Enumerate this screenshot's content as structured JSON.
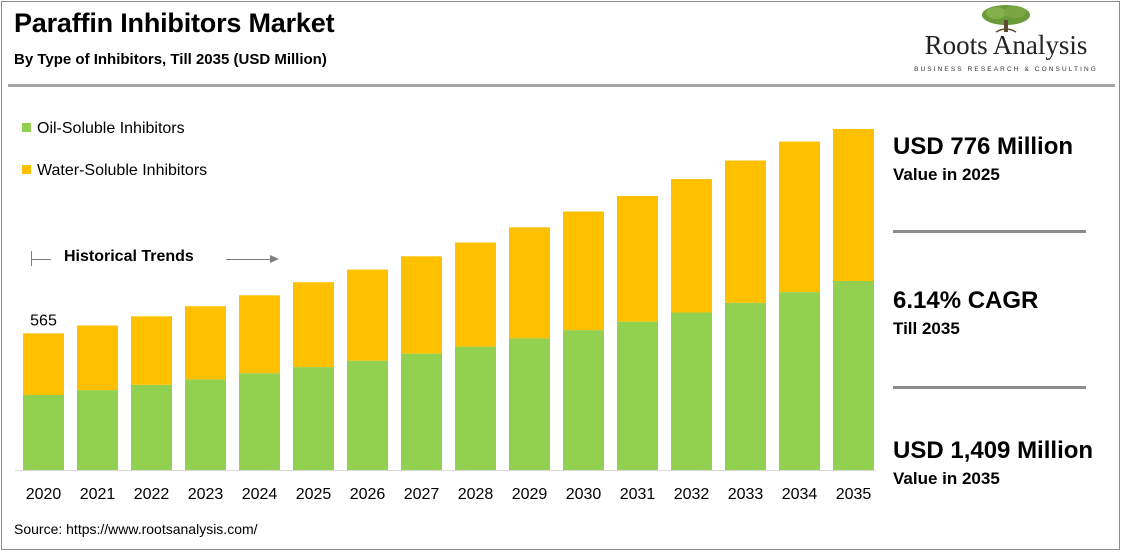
{
  "header": {
    "title": "Paraffin Inhibitors Market",
    "subtitle": "By Type of Inhibitors, Till 2035 (USD Million)"
  },
  "logo": {
    "name": "Roots Analysis",
    "tagline": "BUSINESS RESEARCH & CONSULTING",
    "icon": "tree-icon"
  },
  "legend": {
    "items": [
      {
        "label": "Oil-Soluble Inhibitors",
        "color": "#92d050"
      },
      {
        "label": "Water-Soluble Inhibitors",
        "color": "#ffc000"
      }
    ]
  },
  "annotation": {
    "historical_label": "Historical Trends",
    "first_value_label": "565"
  },
  "chart_data": {
    "type": "bar",
    "stacked": true,
    "categories": [
      "2020",
      "2021",
      "2022",
      "2023",
      "2024",
      "2025",
      "2026",
      "2027",
      "2028",
      "2029",
      "2030",
      "2031",
      "2032",
      "2033",
      "2034",
      "2035"
    ],
    "series": [
      {
        "name": "Oil-Soluble Inhibitors",
        "color": "#92d050",
        "values": [
          310,
          330,
          352,
          375,
          400,
          425,
          452,
          481,
          510,
          544,
          578,
          613,
          651,
          691,
          735,
          781
        ]
      },
      {
        "name": "Water-Soluble Inhibitors",
        "color": "#ffc000",
        "values": [
          255,
          267,
          283,
          302,
          322,
          351,
          376,
          402,
          430,
          459,
          490,
          519,
          551,
          588,
          622,
          628
        ]
      }
    ],
    "totals": [
      565,
      597,
      635,
      677,
      722,
      776,
      828,
      883,
      940,
      1003,
      1068,
      1132,
      1202,
      1279,
      1357,
      1409
    ],
    "ylim": [
      0,
      1409
    ],
    "grid": false,
    "legend_position": "top-left"
  },
  "side_panel": {
    "stat1_value": "USD 776 Million",
    "stat1_label": "Value in 2025",
    "stat2_value": "6.14% CAGR",
    "stat2_label": "Till 2035",
    "stat3_value": "USD 1,409 Million",
    "stat3_label": "Value in 2035"
  },
  "footer": {
    "source": "Source: https://www.rootsanalysis.com/"
  }
}
